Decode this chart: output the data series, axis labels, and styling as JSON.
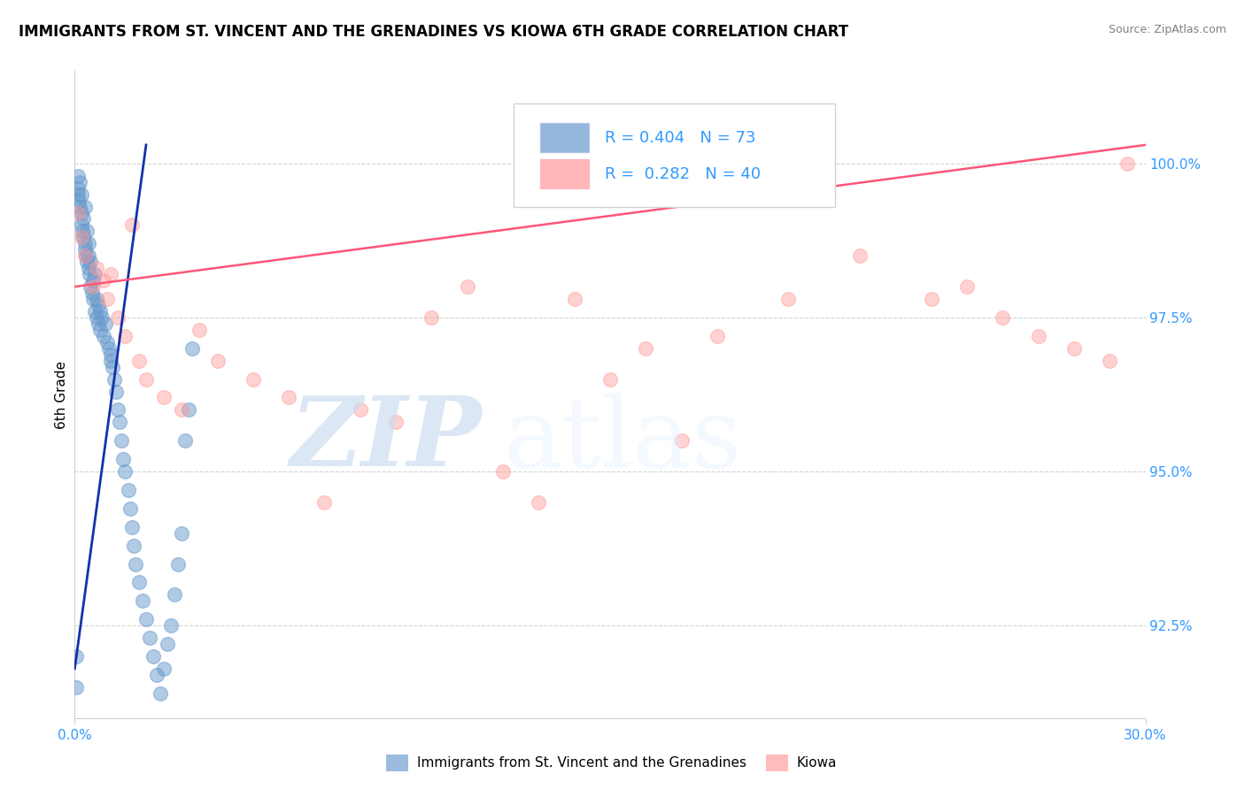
{
  "title": "IMMIGRANTS FROM ST. VINCENT AND THE GRENADINES VS KIOWA 6TH GRADE CORRELATION CHART",
  "source": "Source: ZipAtlas.com",
  "ylabel": "6th Grade",
  "yticks": [
    92.5,
    95.0,
    97.5,
    100.0
  ],
  "ytick_labels": [
    "92.5%",
    "95.0%",
    "97.5%",
    "100.0%"
  ],
  "xlim": [
    0.0,
    30.0
  ],
  "ylim": [
    91.0,
    101.5
  ],
  "blue_R": 0.404,
  "blue_N": 73,
  "pink_R": 0.282,
  "pink_N": 40,
  "blue_color": "#6699CC",
  "pink_color": "#FF9999",
  "blue_line_color": "#1133AA",
  "pink_line_color": "#FF5577",
  "legend_R_color": "#3399FF",
  "blue_x": [
    0.05,
    0.05,
    0.08,
    0.1,
    0.1,
    0.12,
    0.15,
    0.15,
    0.18,
    0.2,
    0.2,
    0.22,
    0.25,
    0.25,
    0.28,
    0.3,
    0.3,
    0.32,
    0.35,
    0.35,
    0.38,
    0.4,
    0.4,
    0.42,
    0.45,
    0.45,
    0.48,
    0.5,
    0.5,
    0.55,
    0.55,
    0.6,
    0.6,
    0.65,
    0.65,
    0.7,
    0.7,
    0.75,
    0.8,
    0.85,
    0.9,
    0.95,
    1.0,
    1.0,
    1.05,
    1.1,
    1.15,
    1.2,
    1.25,
    1.3,
    1.35,
    1.4,
    1.5,
    1.55,
    1.6,
    1.65,
    1.7,
    1.8,
    1.9,
    2.0,
    2.1,
    2.2,
    2.3,
    2.4,
    2.5,
    2.6,
    2.7,
    2.8,
    2.9,
    3.0,
    3.1,
    3.2,
    3.3
  ],
  "blue_y": [
    91.5,
    92.0,
    99.8,
    99.5,
    99.6,
    99.4,
    99.7,
    99.3,
    99.0,
    99.5,
    99.2,
    98.9,
    99.1,
    98.8,
    99.3,
    98.7,
    98.6,
    98.5,
    98.9,
    98.4,
    98.7,
    98.3,
    98.5,
    98.2,
    98.4,
    98.0,
    97.9,
    98.1,
    97.8,
    98.2,
    97.6,
    97.8,
    97.5,
    97.7,
    97.4,
    97.6,
    97.3,
    97.5,
    97.2,
    97.4,
    97.1,
    97.0,
    96.9,
    96.8,
    96.7,
    96.5,
    96.3,
    96.0,
    95.8,
    95.5,
    95.2,
    95.0,
    94.7,
    94.4,
    94.1,
    93.8,
    93.5,
    93.2,
    92.9,
    92.6,
    92.3,
    92.0,
    91.7,
    91.4,
    91.8,
    92.2,
    92.5,
    93.0,
    93.5,
    94.0,
    95.5,
    96.0,
    97.0
  ],
  "pink_x": [
    0.1,
    0.2,
    0.3,
    0.5,
    0.6,
    0.8,
    0.9,
    1.0,
    1.2,
    1.4,
    1.6,
    1.8,
    2.0,
    2.5,
    3.0,
    3.5,
    4.0,
    5.0,
    6.0,
    7.0,
    8.0,
    9.0,
    10.0,
    11.0,
    12.0,
    13.0,
    14.0,
    15.0,
    16.0,
    17.0,
    18.0,
    20.0,
    22.0,
    24.0,
    25.0,
    26.0,
    27.0,
    28.0,
    29.0,
    29.5
  ],
  "pink_y": [
    99.2,
    98.8,
    98.5,
    98.0,
    98.3,
    98.1,
    97.8,
    98.2,
    97.5,
    97.2,
    99.0,
    96.8,
    96.5,
    96.2,
    96.0,
    97.3,
    96.8,
    96.5,
    96.2,
    94.5,
    96.0,
    95.8,
    97.5,
    98.0,
    95.0,
    94.5,
    97.8,
    96.5,
    97.0,
    95.5,
    97.2,
    97.8,
    98.5,
    97.8,
    98.0,
    97.5,
    97.2,
    97.0,
    96.8,
    100.0
  ],
  "blue_line_x0": 0.0,
  "blue_line_y0": 91.8,
  "blue_line_x1": 2.0,
  "blue_line_y1": 100.3,
  "pink_line_x0": 0.0,
  "pink_line_y0": 98.0,
  "pink_line_x1": 30.0,
  "pink_line_y1": 100.3
}
